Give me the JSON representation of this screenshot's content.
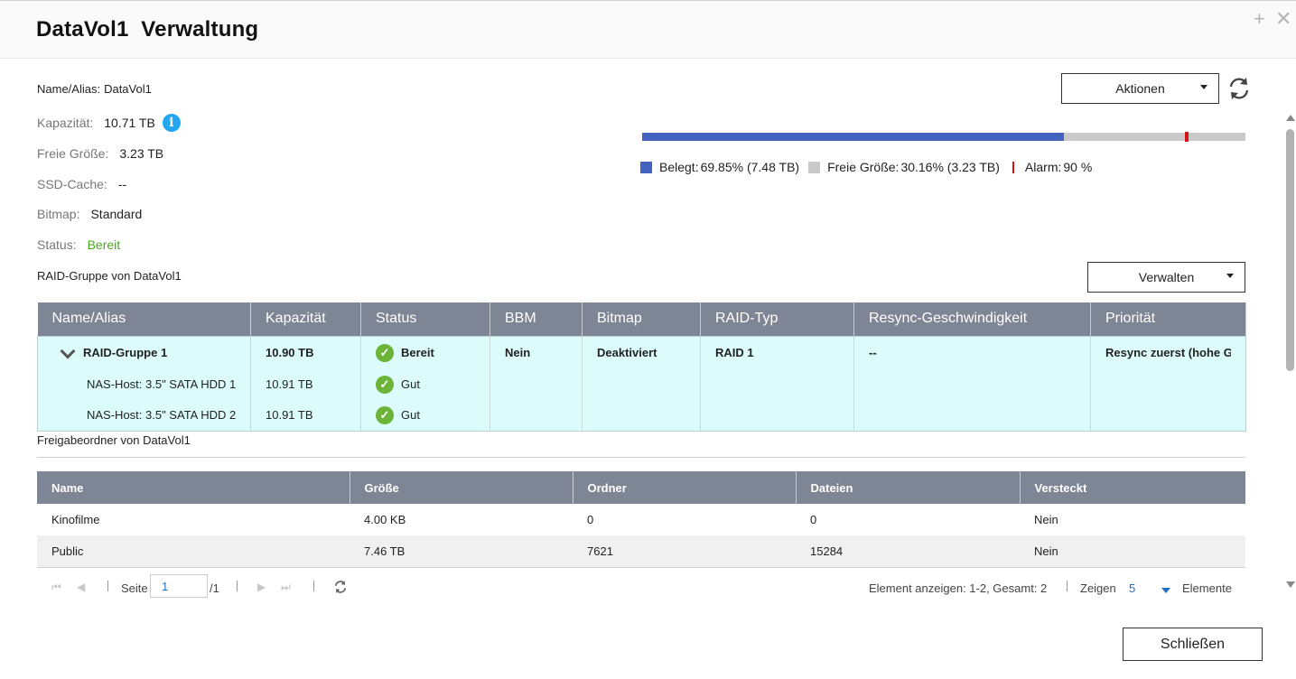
{
  "dialog": {
    "title": "DataVol1  Verwaltung",
    "maximize_icon": "plus-icon",
    "close_icon": "close-icon"
  },
  "info": {
    "name_label": "Name/Alias:",
    "name_value": "DataVol1",
    "capacity_label": "Kapazität:",
    "capacity_value": "10.71 TB",
    "free_label": "Freie Größe:",
    "free_value": "3.23 TB",
    "ssd_label": "SSD-Cache:",
    "ssd_value": "--",
    "bitmap_label": "Bitmap:",
    "bitmap_value": "Standard",
    "status_label": "Status:",
    "status_value": "Bereit",
    "status_color": "#4aa820"
  },
  "actions": {
    "label": "Aktionen",
    "refresh_icon": "refresh-icon"
  },
  "usage": {
    "used_fraction": 0.6985,
    "alarm_fraction": 0.9,
    "used_color": "#4463c0",
    "free_color": "#c9c9c9",
    "alarm_color": "#d01515",
    "used_label": "Belegt:",
    "used_value": "69.85% (7.48 TB)",
    "free_label": "Freie Größe:",
    "free_value": "30.16% (3.23 TB)",
    "alarm_label": "Alarm:",
    "alarm_value": "90 %"
  },
  "raid": {
    "section_title": "RAID-Gruppe von DataVol1",
    "manage_label": "Verwalten",
    "headers": [
      "Name/Alias",
      "Kapazität",
      "Status",
      "BBM",
      "Bitmap",
      "RAID-Typ",
      "Resync-Geschwindigkeit",
      "Priorität"
    ],
    "group": {
      "name": "RAID-Gruppe 1",
      "capacity": "10.90 TB",
      "status": "Bereit",
      "bbm": "Nein",
      "bitmap": "Deaktiviert",
      "raid_type": "RAID 1",
      "resync": "--",
      "priority": "Resync zuerst (hohe Ges"
    },
    "disks": [
      {
        "name": "NAS-Host: 3.5\" SATA HDD 1",
        "capacity": "10.91 TB",
        "status": "Gut"
      },
      {
        "name": "NAS-Host: 3.5\" SATA HDD 2",
        "capacity": "10.91 TB",
        "status": "Gut"
      }
    ]
  },
  "shares": {
    "section_title": "Freigabeordner von DataVol1",
    "headers": [
      "Name",
      "Größe",
      "Ordner",
      "Dateien",
      "Versteckt"
    ],
    "rows": [
      [
        "Kinofilme",
        "4.00 KB",
        "0",
        "0",
        "Nein"
      ],
      [
        "Public",
        "7.46 TB",
        "7621",
        "15284",
        "Nein"
      ]
    ]
  },
  "pager": {
    "page_label": "Seite",
    "page_value": "1",
    "page_total": "/1",
    "display_text": "Element anzeigen: 1-2, Gesamt: 2",
    "show_label": "Zeigen",
    "per_page": "5",
    "items_label": "Elemente"
  },
  "footer": {
    "close_label": "Schließen"
  }
}
